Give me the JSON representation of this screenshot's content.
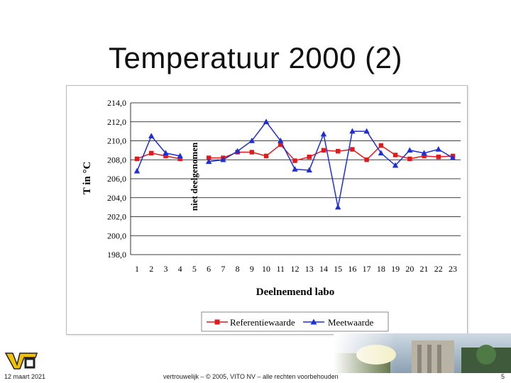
{
  "slide": {
    "title": "Temperatuur 2000 (2)",
    "footer_date": "12 maart 2021",
    "footer_copyright": "vertrouwelijk – © 2005, VITO NV – alle rechten voorbehouden",
    "page_number": "5"
  },
  "colors": {
    "reference": "#e31a1c",
    "measured": "#1f2fd6",
    "grid": "#000000"
  },
  "chart_data": {
    "type": "line",
    "title": "",
    "xlabel": "Deelnemend labo",
    "ylabel": "T in °C",
    "annotation": "niet deelgenomen",
    "ylim": [
      198.0,
      214.0
    ],
    "y_ticks": [
      "198,0",
      "200,0",
      "202,0",
      "204,0",
      "206,0",
      "208,0",
      "210,0",
      "212,0",
      "214,0"
    ],
    "categories": [
      "1",
      "2",
      "3",
      "4",
      "5",
      "6",
      "7",
      "8",
      "9",
      "10",
      "11",
      "12",
      "13",
      "14",
      "15",
      "16",
      "17",
      "18",
      "19",
      "20",
      "21",
      "22",
      "23"
    ],
    "series": [
      {
        "name": "Referentiewaarde",
        "marker": "square",
        "values": [
          208.1,
          208.7,
          208.4,
          208.1,
          null,
          208.2,
          208.2,
          208.8,
          208.8,
          208.4,
          209.6,
          207.9,
          208.3,
          209.0,
          208.9,
          209.1,
          208.0,
          209.5,
          208.5,
          208.1,
          208.4,
          208.3,
          208.4
        ]
      },
      {
        "name": "Meetwaarde",
        "marker": "triangle",
        "values": [
          206.8,
          210.5,
          208.7,
          208.4,
          null,
          207.8,
          208.0,
          208.9,
          210.0,
          212.0,
          210.0,
          207.0,
          206.9,
          210.7,
          203.0,
          211.0,
          211.0,
          208.7,
          207.4,
          209.0,
          208.7,
          209.1,
          208.2
        ]
      }
    ],
    "legend": {
      "position": "bottom"
    }
  }
}
